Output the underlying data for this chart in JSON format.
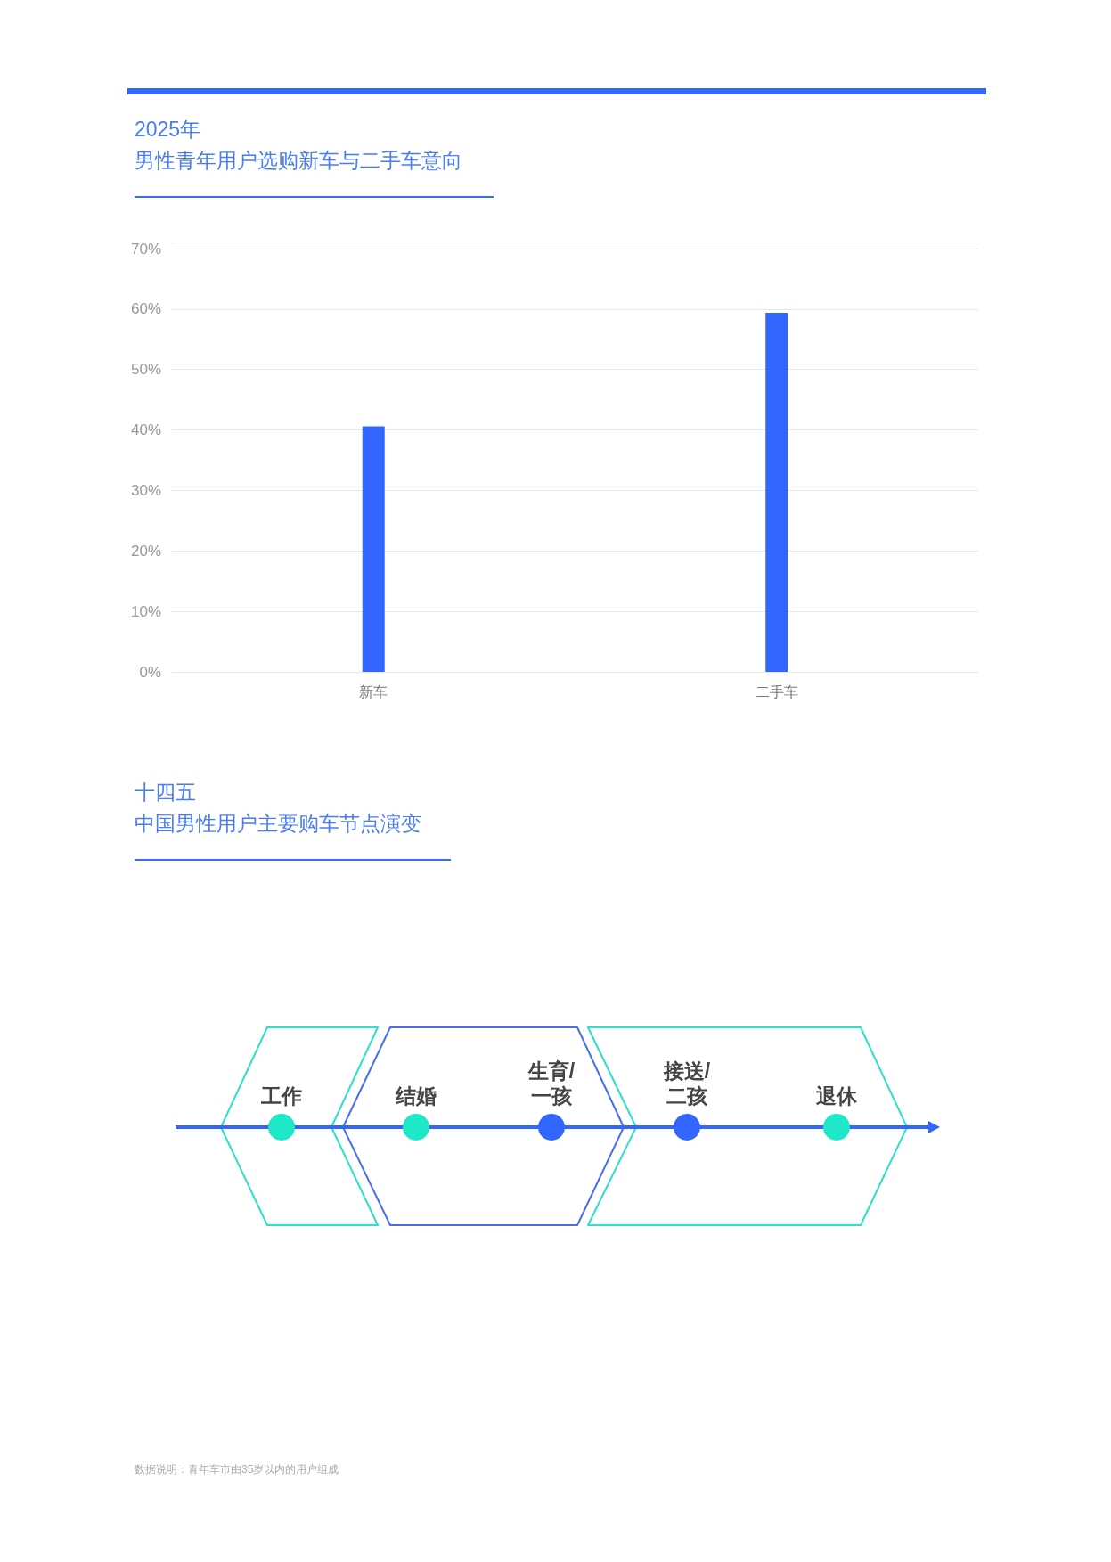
{
  "chart_data": [
    {
      "type": "bar",
      "title": "2025年",
      "subtitle": "男性青年用户选购新车与二手车意向",
      "categories": [
        "新车",
        "二手车"
      ],
      "values": [
        40.6,
        59.4
      ],
      "color": "#3366ff",
      "ylim": [
        0,
        70
      ],
      "yticks": [
        {
          "value": 0,
          "label": "0%"
        },
        {
          "value": 10,
          "label": "10%"
        },
        {
          "value": 20,
          "label": "20%"
        },
        {
          "value": 30,
          "label": "30%"
        },
        {
          "value": 40,
          "label": "40%"
        },
        {
          "value": 50,
          "label": "50%"
        },
        {
          "value": 60,
          "label": "60%"
        },
        {
          "value": 70,
          "label": "70%"
        }
      ],
      "grid": "y"
    },
    {
      "type": "other",
      "title": "十四五",
      "subtitle": "中国男性用户主要购车节点演变",
      "categories": [
        "工作",
        "结婚",
        "生育/\n一孩",
        "接送/\n二孩",
        "退休"
      ],
      "colors": [
        "#1ee8c8",
        "#1ee8c8",
        "#3366ff",
        "#3366ff",
        "#1ee8c8"
      ],
      "annotations": [
        "数据说明：青年车市由35岁以内的用户组成"
      ]
    }
  ]
}
